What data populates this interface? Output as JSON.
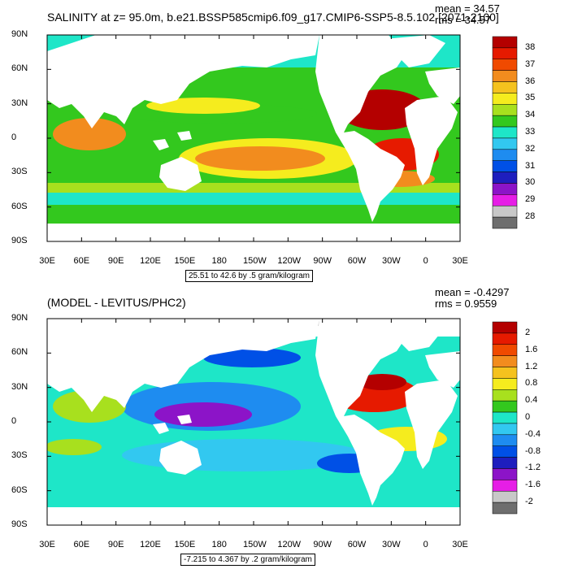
{
  "panel1": {
    "title": "SALINITY at z=  95.0m, b.e21.BSSP585cmip6.f09_g17.CMIP6-SSP5-8.5.102 [2071-2100]",
    "mean": "mean = 34.57",
    "rms": "rms = 34.57",
    "range_label": "25.51 to 42.6 by .5 gram/kilogram",
    "colorbar": {
      "labels": [
        "38",
        "37",
        "36",
        "35",
        "34",
        "33",
        "32",
        "31",
        "30",
        "29",
        "28"
      ],
      "colors": [
        "#b40000",
        "#e61a00",
        "#f04a00",
        "#f28c1e",
        "#f5c21e",
        "#f5ec1e",
        "#a8e01e",
        "#33c81e",
        "#1ee6c8",
        "#32c8f0",
        "#1e8cf0",
        "#0050e6",
        "#1e1ebe",
        "#8c14c8",
        "#e61ee6",
        "#c8c8c8",
        "#6e6e6e"
      ]
    }
  },
  "panel2": {
    "title": "(MODEL - LEVITUS/PHC2)",
    "mean": "mean = -0.4297",
    "rms": "rms = 0.9559",
    "range_label": "-7.215 to 4.367 by .2 gram/kilogram",
    "colorbar": {
      "labels": [
        "2",
        "1.6",
        "1.2",
        "0.8",
        "0.4",
        "0",
        "-0.4",
        "-0.8",
        "-1.2",
        "-1.6",
        "-2"
      ],
      "colors": [
        "#b40000",
        "#e61a00",
        "#f04a00",
        "#f28c1e",
        "#f5c21e",
        "#f5ec1e",
        "#a8e01e",
        "#33c81e",
        "#1ee6c8",
        "#32c8f0",
        "#1e8cf0",
        "#0050e6",
        "#1e1ebe",
        "#8c14c8",
        "#e61ee6",
        "#c8c8c8",
        "#6e6e6e"
      ]
    }
  },
  "axes": {
    "lat_labels": [
      "90N",
      "60N",
      "30N",
      "0",
      "30S",
      "60S",
      "90S"
    ],
    "lon_labels": [
      "30E",
      "60E",
      "90E",
      "120E",
      "150E",
      "180",
      "150W",
      "120W",
      "90W",
      "60W",
      "30W",
      "0",
      "30E"
    ]
  }
}
